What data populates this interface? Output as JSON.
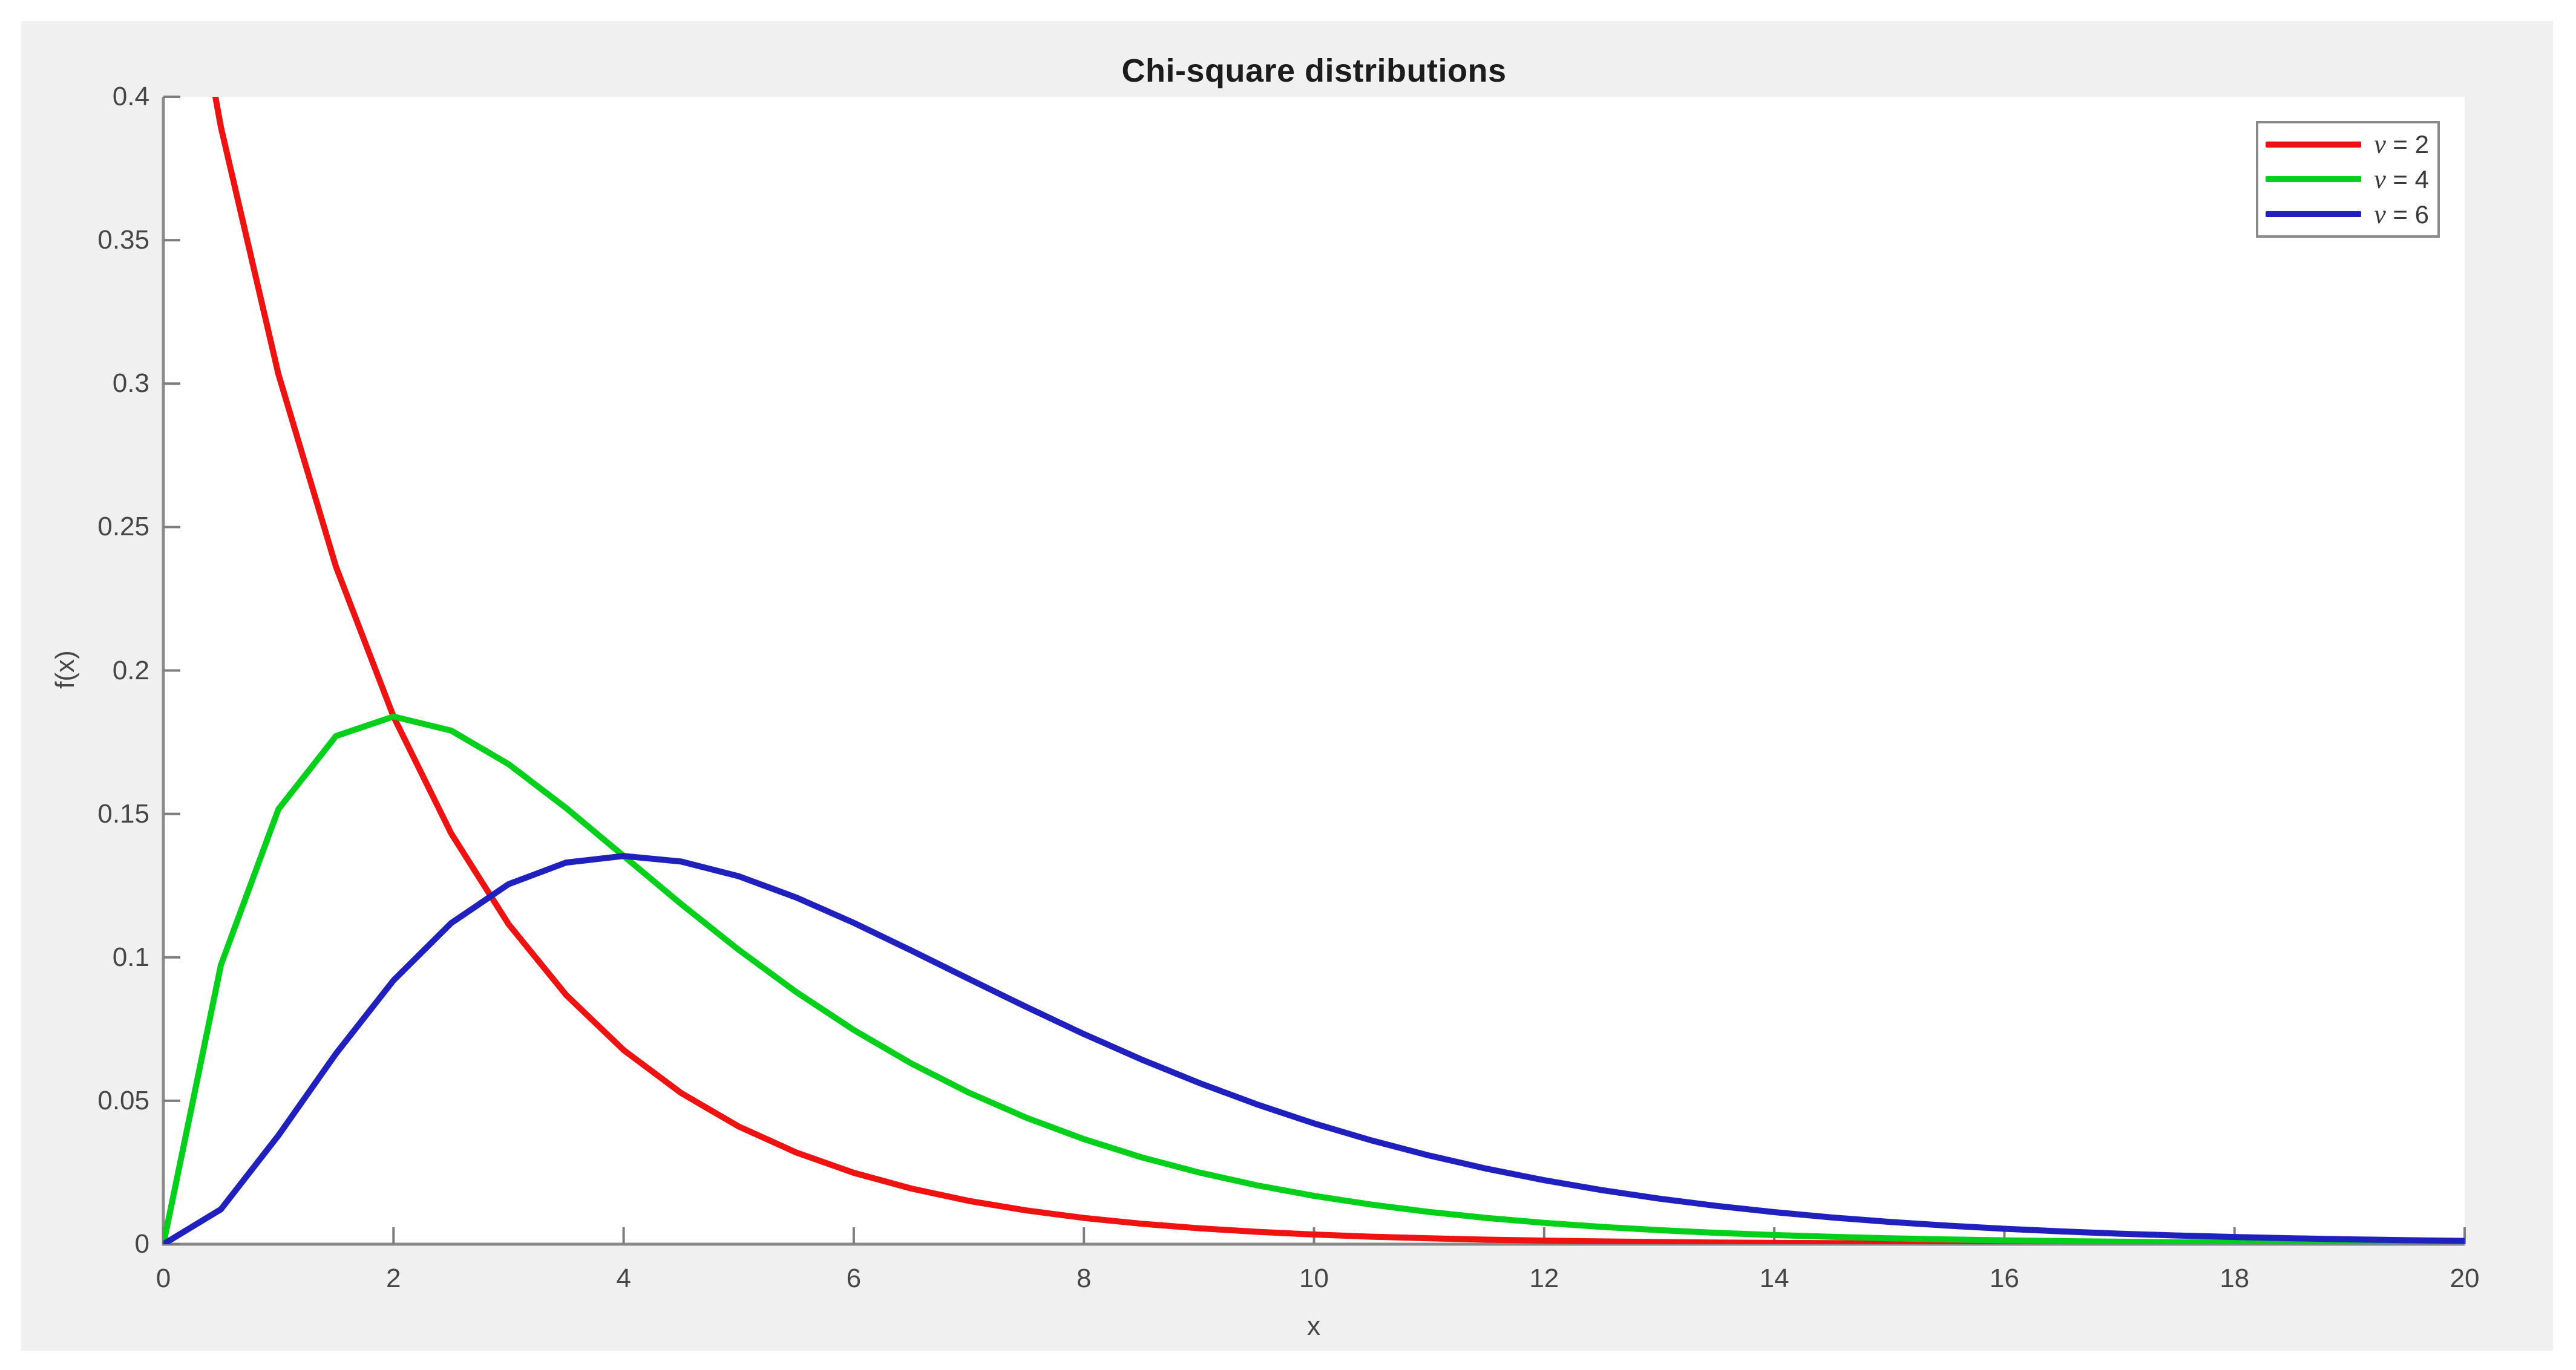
{
  "window": {
    "outer_background": "#ffffff",
    "figure_background": "#f0f0f0",
    "plot_background": "#ffffff"
  },
  "axes_style": {
    "axis_line_color": "#8a8a8a",
    "tick_color": "#7d7d7d",
    "tick_label_color": "#464646",
    "title_color": "#1c1c1c",
    "legend_border_color": "#8a8a8a"
  },
  "chart_data": {
    "type": "line",
    "title": "Chi-square distributions",
    "xlabel": "x",
    "ylabel": "f(x)",
    "xlim": [
      0,
      20
    ],
    "ylim": [
      0,
      0.4
    ],
    "x_ticks": [
      "0",
      "2",
      "4",
      "6",
      "8",
      "10",
      "12",
      "14",
      "16",
      "18",
      "20"
    ],
    "y_ticks": [
      "0",
      "0.05",
      "0.1",
      "0.15",
      "0.2",
      "0.25",
      "0.3",
      "0.35",
      "0.4"
    ],
    "grid": false,
    "legend_position": "top-right",
    "x": [
      0,
      0.5,
      1,
      1.5,
      2,
      2.5,
      3,
      3.5,
      4,
      4.5,
      5,
      5.5,
      6,
      6.5,
      7,
      7.5,
      8,
      8.5,
      9,
      9.5,
      10,
      10.5,
      11,
      11.5,
      12,
      12.5,
      13,
      13.5,
      14,
      14.5,
      15,
      15.5,
      16,
      16.5,
      17,
      17.5,
      18,
      18.5,
      19,
      19.5,
      20
    ],
    "series": [
      {
        "name": "ν = 2",
        "legend_symbol": "ν",
        "legend_rest": " = 2",
        "df": 2,
        "color": "#f01111",
        "values": [
          0.5,
          0.3894,
          0.30327,
          0.23618,
          0.18394,
          0.14325,
          0.11157,
          0.08689,
          0.06767,
          0.0527,
          0.04104,
          0.03196,
          0.02489,
          0.01939,
          0.0151,
          0.01176,
          0.00916,
          0.00713,
          0.00555,
          0.00433,
          0.00337,
          0.00262,
          0.00204,
          0.00159,
          0.00124,
          0.00097,
          0.00075,
          0.00059,
          0.00046,
          0.00036,
          0.00028,
          0.00022,
          0.00017,
          0.00013,
          0.0001,
          8e-05,
          6e-05,
          5e-05,
          4e-05,
          3e-05,
          2e-05
        ]
      },
      {
        "name": "ν = 4",
        "legend_symbol": "ν",
        "legend_rest": " = 4",
        "df": 4,
        "color": "#00d01a",
        "values": [
          0,
          0.09735,
          0.15163,
          0.17714,
          0.18394,
          0.17906,
          0.16735,
          0.15205,
          0.13534,
          0.11857,
          0.10261,
          0.0879,
          0.07468,
          0.06301,
          0.05284,
          0.0441,
          0.03663,
          0.03031,
          0.025,
          0.02055,
          0.01684,
          0.01378,
          0.01124,
          0.00915,
          0.00744,
          0.00603,
          0.00489,
          0.00395,
          0.00319,
          0.00257,
          0.00207,
          0.00167,
          0.00134,
          0.00108,
          0.00086,
          0.00069,
          0.00056,
          0.00044,
          0.00036,
          0.00028,
          0.00023
        ]
      },
      {
        "name": "ν = 6",
        "legend_symbol": "ν",
        "legend_rest": " = 6",
        "df": 6,
        "color": "#2020be",
        "values": [
          0,
          0.01217,
          0.03791,
          0.06643,
          0.09197,
          0.11191,
          0.12551,
          0.13304,
          0.13534,
          0.13339,
          0.12826,
          0.12087,
          0.11203,
          0.10238,
          0.09248,
          0.08269,
          0.07326,
          0.0644,
          0.05624,
          0.04879,
          0.04211,
          0.03616,
          0.03091,
          0.02631,
          0.02231,
          0.01885,
          0.01588,
          0.01334,
          0.01117,
          0.00933,
          0.00778,
          0.00647,
          0.00537,
          0.00444,
          0.00367,
          0.00303,
          0.0025,
          0.00206,
          0.00169,
          0.00139,
          0.00113
        ]
      }
    ]
  }
}
